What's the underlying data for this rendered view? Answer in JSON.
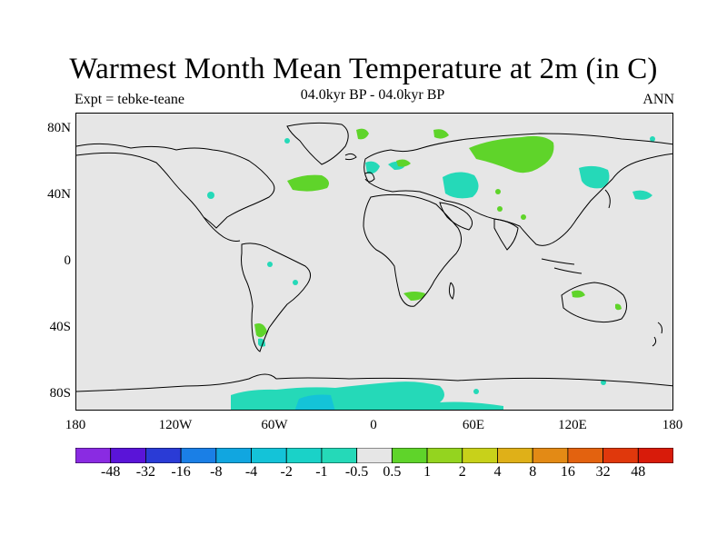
{
  "figure": {
    "title": "Warmest Month Mean Temperature at 2m (in C)",
    "subtitle_left": "Expt = tebke-teane",
    "subtitle_center": "04.0kyr BP - 04.0kyr BP",
    "subtitle_right": "ANN"
  },
  "axes": {
    "lat_labels": [
      "80N",
      "40N",
      "0",
      "40S",
      "80S"
    ],
    "lat_values": [
      80,
      40,
      0,
      -40,
      -80
    ],
    "lon_labels": [
      "180",
      "120W",
      "60W",
      "0",
      "60E",
      "120E",
      "180"
    ],
    "lon_values": [
      -180,
      -120,
      -60,
      0,
      60,
      120,
      180
    ]
  },
  "colorbar": {
    "labels": [
      "-48",
      "-32",
      "-16",
      "-8",
      "-4",
      "-2",
      "-1",
      "-0.5",
      "0.5",
      "1",
      "2",
      "4",
      "8",
      "16",
      "32",
      "48"
    ],
    "colors": [
      "#8a2be2",
      "#5a14d8",
      "#2a3bd6",
      "#1a7fe6",
      "#11a6e0",
      "#14c3d8",
      "#1ad2c8",
      "#25d9b8",
      "#e6e6e6",
      "#5fd42a",
      "#94d41f",
      "#c8d11a",
      "#dfb018",
      "#e38a15",
      "#e3620f",
      "#e0380c",
      "#d81b0a"
    ]
  },
  "colors": {
    "background": "#e6e6e6",
    "coast": "#000000",
    "warm_small": "#5fd42a",
    "cool_small": "#25d9b8"
  }
}
